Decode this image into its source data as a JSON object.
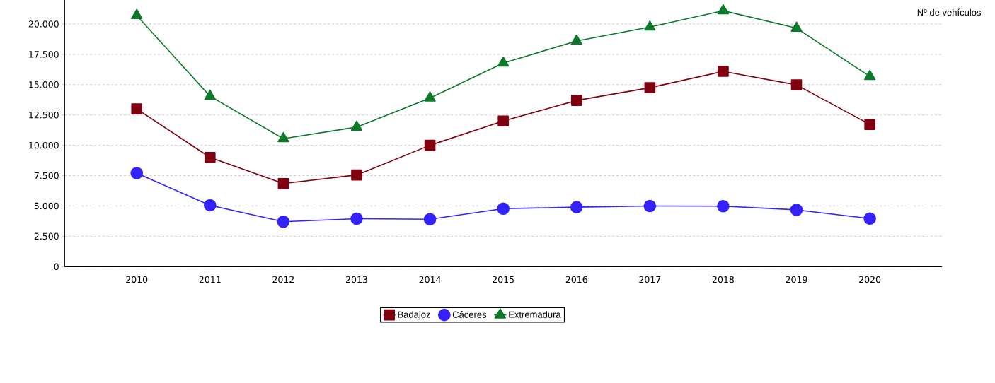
{
  "chart_data": {
    "type": "line",
    "ylabel": "Nº de vehículos",
    "categories": [
      "2010",
      "2011",
      "2012",
      "2013",
      "2014",
      "2015",
      "2016",
      "2017",
      "2018",
      "2019",
      "2020"
    ],
    "series": [
      {
        "name": "Badajoz",
        "color": "#800010",
        "marker": "square",
        "values": [
          13000,
          9000,
          6850,
          7550,
          10000,
          12000,
          13700,
          14750,
          16100,
          14980,
          11720
        ]
      },
      {
        "name": "Cáceres",
        "color": "#3322ff",
        "marker": "circle",
        "values": [
          7700,
          5050,
          3700,
          3950,
          3900,
          4780,
          4900,
          5000,
          4980,
          4680,
          3960
        ]
      },
      {
        "name": "Extremadura",
        "color": "#0a7a2a",
        "marker": "triangle",
        "values": [
          20700,
          14050,
          10550,
          11500,
          13900,
          16780,
          18600,
          19750,
          21100,
          19660,
          15680
        ]
      }
    ],
    "ylim": [
      0,
      22200
    ],
    "yticks": [
      0,
      {
        "value": 2500,
        "label": "2.500"
      },
      {
        "value": 5000,
        "label": "5.000"
      },
      {
        "value": 7500,
        "label": "7.500"
      },
      {
        "value": 10000,
        "label": "10.000"
      },
      {
        "value": 12500,
        "label": "12.500"
      },
      {
        "value": 15000,
        "label": "15.000"
      },
      {
        "value": 17500,
        "label": "17.500"
      },
      {
        "value": 20000,
        "label": "20.000"
      }
    ],
    "grid": "y",
    "legend": "bottom",
    "line_style": "solid"
  }
}
